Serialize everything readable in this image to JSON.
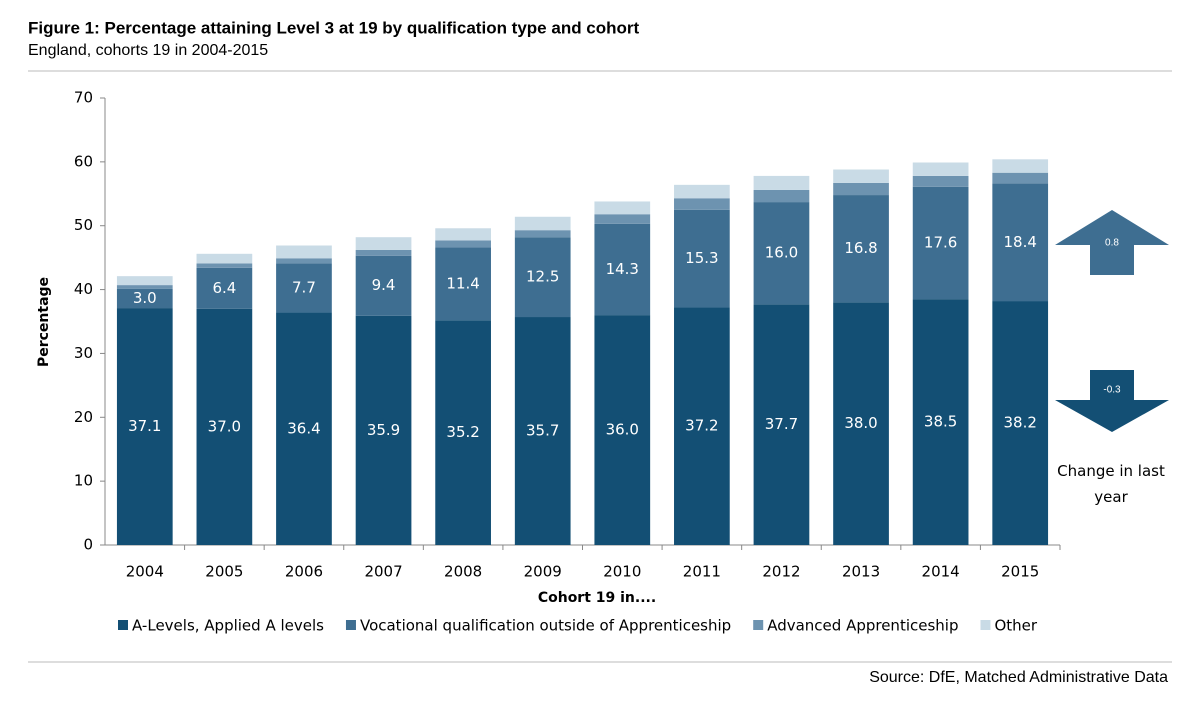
{
  "chart_data": {
    "type": "stacked_bar",
    "title": "Figure 1: Percentage attaining Level 3 at 19 by qualification type and cohort",
    "subtitle": "England, cohorts 19 in 2004-2015",
    "x_label": "Cohort 19 in....",
    "y_label": "Percentage",
    "source": "Source: DfE, Matched Administrative Data",
    "categories": [
      "2004",
      "2005",
      "2006",
      "2007",
      "2008",
      "2009",
      "2010",
      "2011",
      "2012",
      "2013",
      "2014",
      "2015"
    ],
    "series": [
      {
        "name": "A-Levels, Applied A levels",
        "color": "#134f74",
        "values": [
          37.1,
          37.0,
          36.4,
          35.9,
          35.2,
          35.7,
          36.0,
          37.2,
          37.7,
          38.0,
          38.5,
          38.2
        ],
        "value_labels": [
          "37.1",
          "37.0",
          "36.4",
          "35.9",
          "35.2",
          "35.7",
          "36.0",
          "37.2",
          "37.7",
          "38.0",
          "38.5",
          "38.2"
        ]
      },
      {
        "name": "Vocational qualification outside of Apprenticeship",
        "color": "#3e6e91",
        "values": [
          3.0,
          6.4,
          7.7,
          9.4,
          11.4,
          12.5,
          14.3,
          15.3,
          16.0,
          16.8,
          17.6,
          18.4
        ],
        "value_labels": [
          "3.0",
          "6.4",
          "7.7",
          "9.4",
          "11.4",
          "12.5",
          "14.3",
          "15.3",
          "16.0",
          "16.8",
          "17.6",
          "18.4"
        ]
      },
      {
        "name": "Advanced Apprenticeship",
        "color": "#6d93b0",
        "values": [
          0.6,
          0.7,
          0.8,
          0.9,
          1.1,
          1.1,
          1.5,
          1.8,
          1.9,
          1.9,
          1.7,
          1.7
        ]
      },
      {
        "name": "Other",
        "color": "#c9dbe6",
        "values": [
          1.4,
          1.5,
          2.0,
          2.0,
          1.9,
          2.1,
          2.0,
          2.1,
          2.2,
          2.1,
          2.1,
          2.1
        ]
      }
    ],
    "ylim": [
      0,
      70
    ],
    "yticks": [
      0,
      10,
      20,
      30,
      40,
      50,
      60,
      70
    ],
    "annotations": [
      {
        "value": 0.8,
        "label": "0.8",
        "color": "#3e6e91"
      },
      {
        "value": -0.3,
        "label": "-0.3",
        "color": "#134f74"
      }
    ],
    "annotation_title": "Change in last year"
  }
}
